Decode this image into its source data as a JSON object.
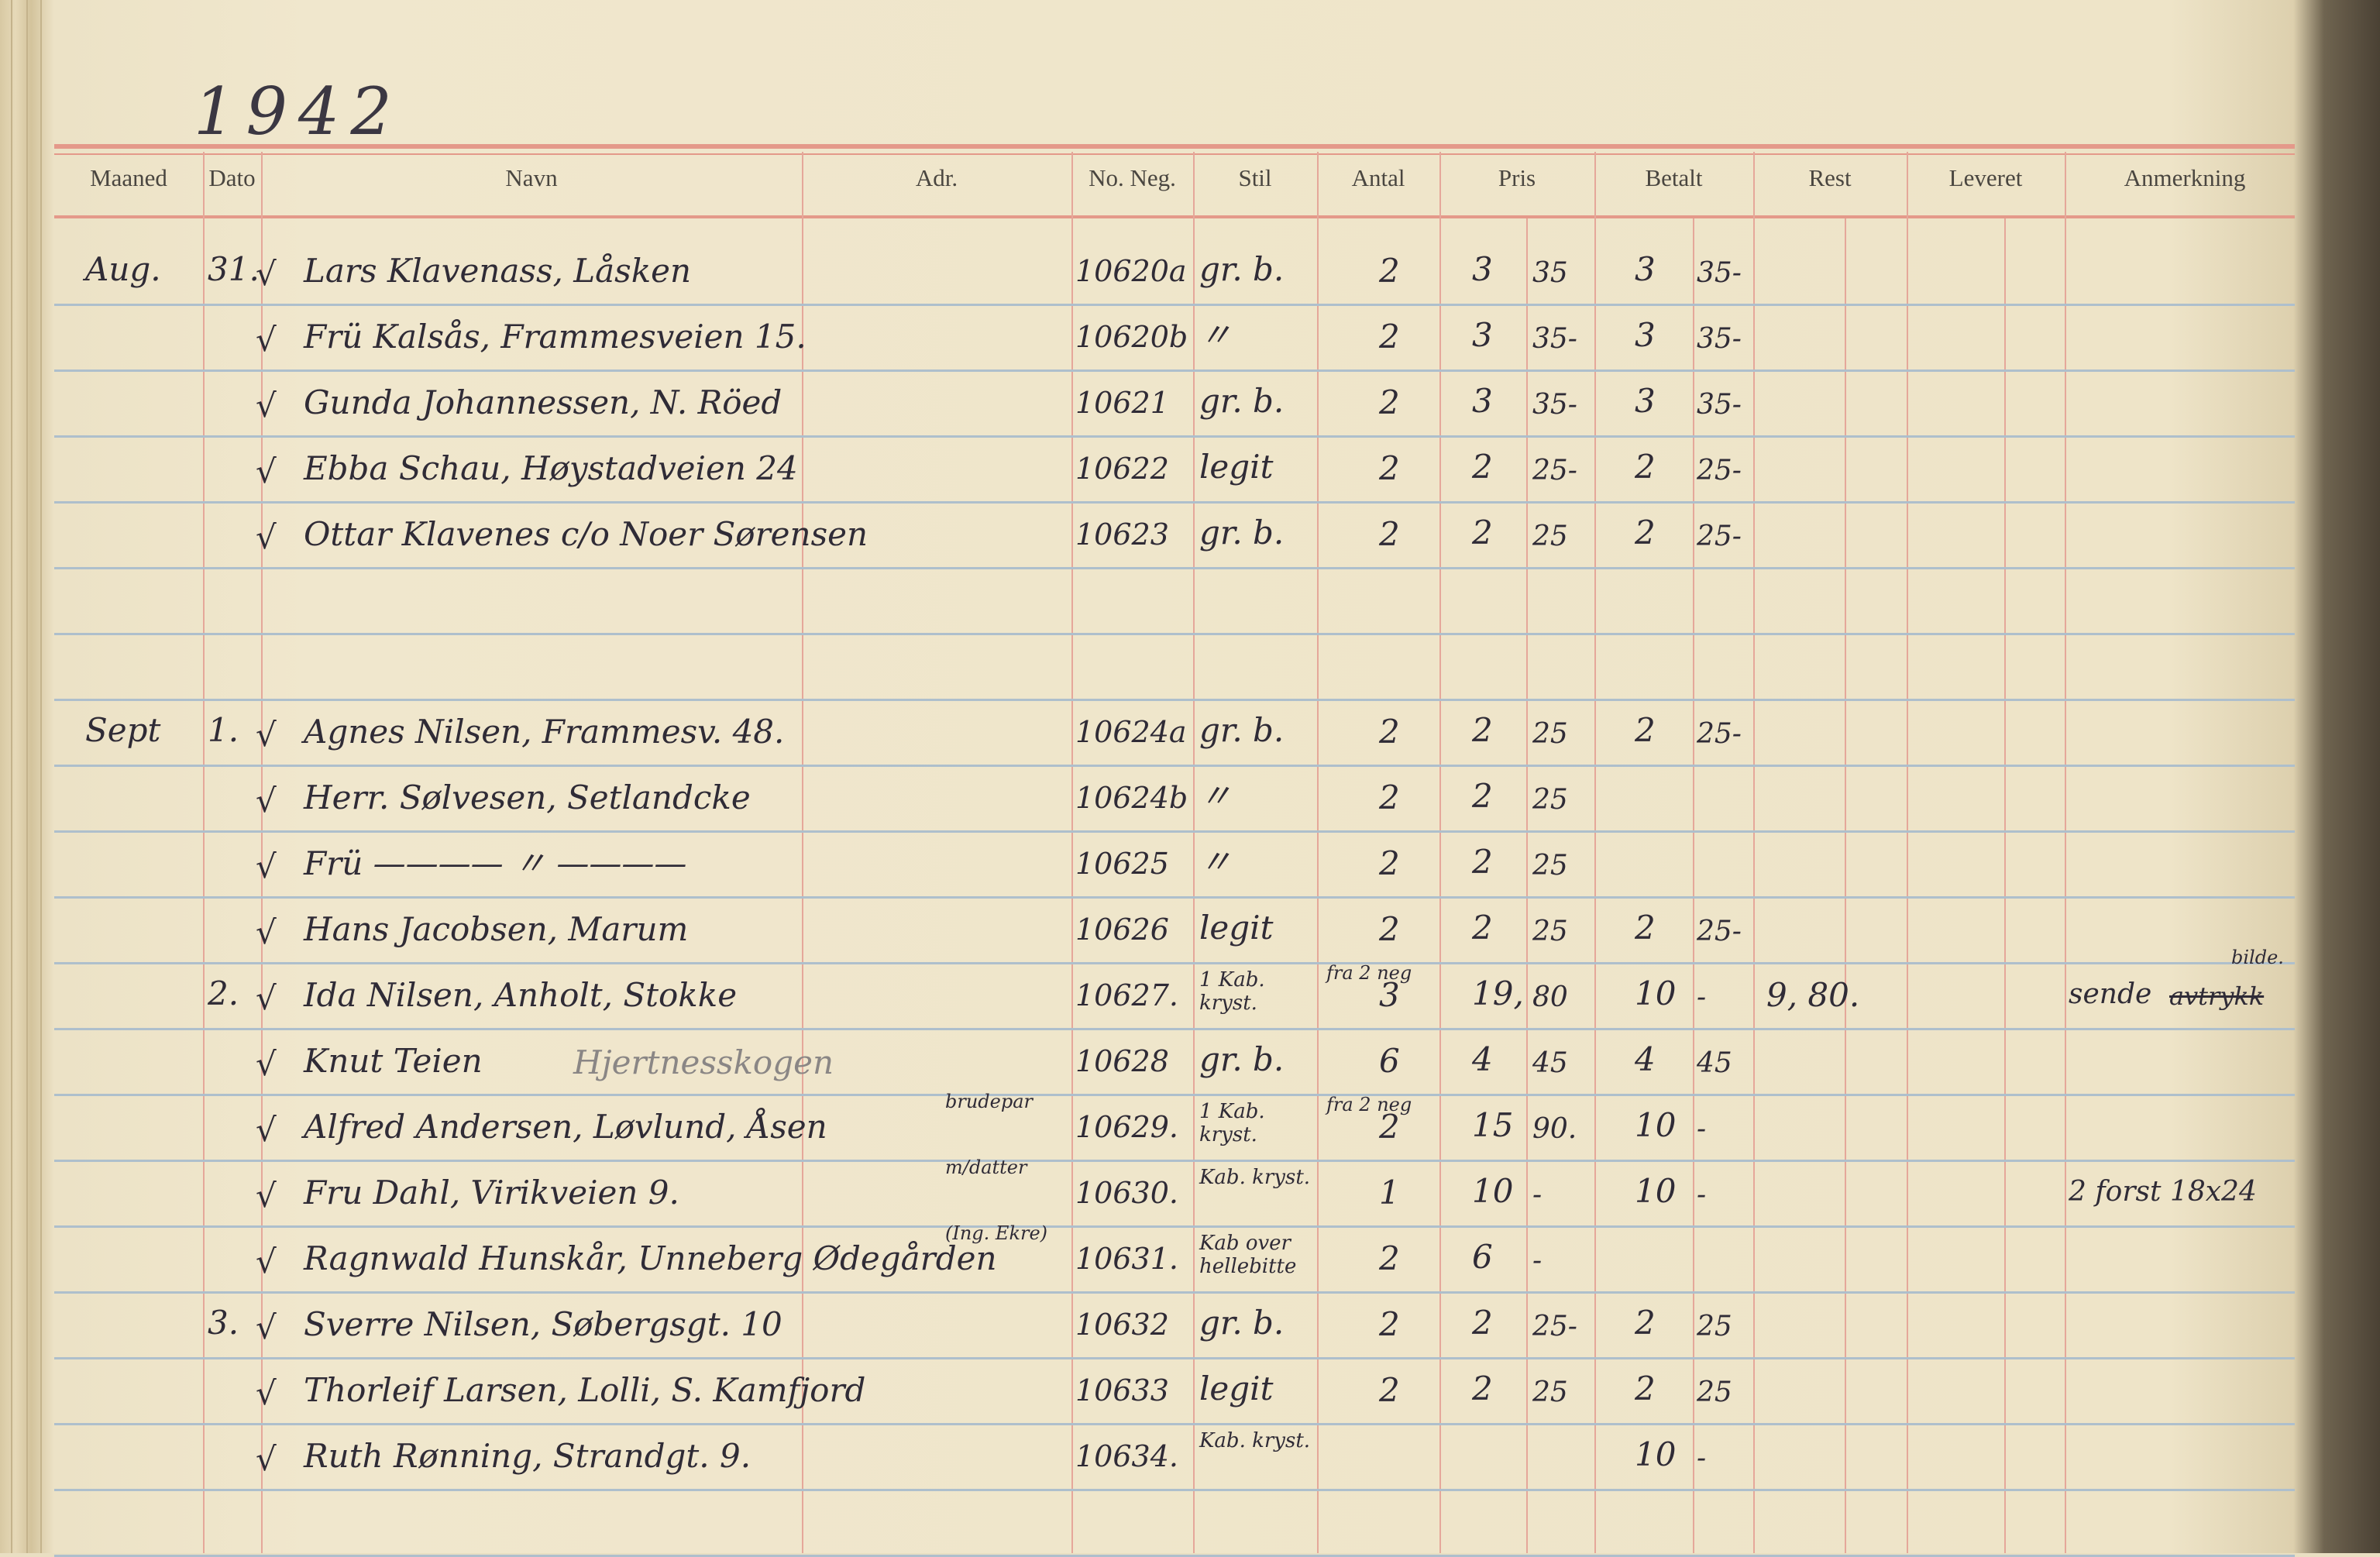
{
  "year": "1942",
  "headers": [
    "Maaned",
    "Dato",
    "Navn",
    "Adr.",
    "No. Neg.",
    "Stil",
    "Antal",
    "Pris",
    "Betalt",
    "Rest",
    "Leveret",
    "Anmerkning"
  ],
  "colors": {
    "paper": "#f0e7cd",
    "red_rule": "#e4998a",
    "blue_rule": "#aebfcc",
    "ink": "#2f2b36"
  },
  "rows": [
    {
      "month": "Aug.",
      "day": "31.",
      "check": "√",
      "name": "Lars Klavenass, Låsken",
      "neg": "10620a",
      "stil": "gr. b.",
      "antal": "2",
      "pris_kr": "3",
      "pris_ore": "35",
      "betalt_kr": "3",
      "betalt_ore": "35-"
    },
    {
      "check": "√",
      "name": "Frü Kalsås, Frammesveien 15.",
      "neg": "10620b",
      "stil": "〃",
      "antal": "2",
      "pris_kr": "3",
      "pris_ore": "35-",
      "betalt_kr": "3",
      "betalt_ore": "35-"
    },
    {
      "check": "√",
      "name": "Gunda Johannessen, N. Röed",
      "neg": "10621",
      "stil": "gr. b.",
      "antal": "2",
      "pris_kr": "3",
      "pris_ore": "35-",
      "betalt_kr": "3",
      "betalt_ore": "35-"
    },
    {
      "check": "√",
      "name": "Ebba Schau, Høystadveien 24",
      "neg": "10622",
      "stil": "legit",
      "antal": "2",
      "pris_kr": "2",
      "pris_ore": "25-",
      "betalt_kr": "2",
      "betalt_ore": "25-"
    },
    {
      "check": "√",
      "name": "Ottar Klavenes c/o Noer Sørensen",
      "neg": "10623",
      "stil": "gr. b.",
      "antal": "2",
      "pris_kr": "2",
      "pris_ore": "25",
      "betalt_kr": "2",
      "betalt_ore": "25-"
    },
    {},
    {},
    {
      "month": "Sept",
      "day": "1.",
      "check": "√",
      "name": "Agnes Nilsen, Frammesv. 48.",
      "neg": "10624a",
      "stil": "gr. b.",
      "antal": "2",
      "pris_kr": "2",
      "pris_ore": "25",
      "betalt_kr": "2",
      "betalt_ore": "25-"
    },
    {
      "check": "√",
      "name": "Herr. Sølvesen, Setlandcke",
      "neg": "10624b",
      "stil": "〃",
      "antal": "2",
      "pris_kr": "2",
      "pris_ore": "25"
    },
    {
      "check": "√",
      "name": "Frü ———— 〃 ————",
      "neg": "10625",
      "stil": "〃",
      "antal": "2",
      "pris_kr": "2",
      "pris_ore": "25"
    },
    {
      "check": "√",
      "name": "Hans Jacobsen, Marum",
      "neg": "10626",
      "stil": "legit",
      "antal": "2",
      "pris_kr": "2",
      "pris_ore": "25",
      "betalt_kr": "2",
      "betalt_ore": "25-"
    },
    {
      "day": "2.",
      "check": "√",
      "name": "Ida Nilsen, Anholt, Stokke",
      "neg": "10627.",
      "stil": "1 Kab. kryst.",
      "antal_note": "fra 2 neg",
      "antal": "3",
      "pris_kr": "19,",
      "pris_ore": "80",
      "betalt_kr": "10",
      "betalt_ore": "-",
      "rest": "9, 80.",
      "anm_note": "bilde.",
      "anm": "sende",
      "anm_struck": "avtrykk"
    },
    {
      "check": "√",
      "name": "Knut Teien",
      "name_faint": "Hjertnesskogen",
      "neg": "10628",
      "stil": "gr. b.",
      "antal": "6",
      "pris_kr": "4",
      "pris_ore": "45",
      "betalt_kr": "4",
      "betalt_ore": "45"
    },
    {
      "check": "√",
      "name": "Alfred Andersen, Løvlund, Åsen",
      "name_note": "brudepar",
      "neg": "10629.",
      "stil": "1 Kab. kryst.",
      "antal_note": "fra 2 neg",
      "antal": "2",
      "pris_kr": "15",
      "pris_ore": "90.",
      "betalt_kr": "10",
      "betalt_ore": "-"
    },
    {
      "check": "√",
      "name": "Fru Dahl, Virikveien 9.",
      "name_note": "m/datter",
      "neg": "10630.",
      "stil": "Kab. kryst.",
      "antal": "1",
      "pris_kr": "10",
      "pris_ore": "-",
      "betalt_kr": "10",
      "betalt_ore": "-",
      "anm": "2 forst 18x24"
    },
    {
      "check": "√",
      "name": "Ragnwald Hunskår, Unneberg Ødegården",
      "name_note": "(Ing. Ekre)",
      "neg": "10631.",
      "stil": "Kab over hellebitte",
      "antal": "2",
      "pris_kr": "6",
      "pris_ore": "-"
    },
    {
      "day": "3.",
      "check": "√",
      "name": "Sverre Nilsen, Søbergsgt. 10",
      "neg": "10632",
      "stil": "gr. b.",
      "antal": "2",
      "pris_kr": "2",
      "pris_ore": "25-",
      "betalt_kr": "2",
      "betalt_ore": "25"
    },
    {
      "check": "√",
      "name": "Thorleif Larsen, Lolli, S. Kamfjord",
      "neg": "10633",
      "stil": "legit",
      "antal": "2",
      "pris_kr": "2",
      "pris_ore": "25",
      "betalt_kr": "2",
      "betalt_ore": "25"
    },
    {
      "check": "√",
      "name": "Ruth Rønning, Strandgt. 9.",
      "neg": "10634.",
      "stil": "Kab. kryst.",
      "betalt_kr": "10",
      "betalt_ore": "-"
    }
  ]
}
